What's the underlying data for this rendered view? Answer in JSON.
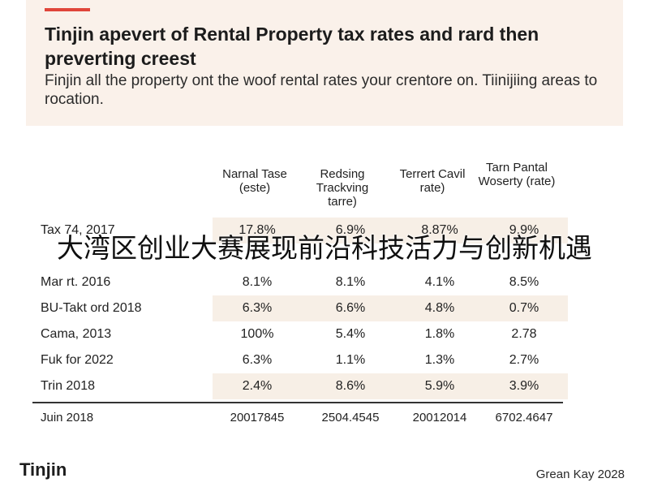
{
  "header": {
    "title": "Tinjin apevert of Rental Property tax rates and rard then preverting creest",
    "subtitle": "Finjin all the property ont the woof rental rates your crentore on. Tiinijiing areas to rocation.",
    "accent_color": "#e0453a",
    "background_color": "#faf1ea"
  },
  "table": {
    "columns": [
      "Narnal Tase (este)",
      "Redsing Trackving tarre)",
      "Terrert Cavil rate)",
      "Tarn Pantal Woserty (rate)"
    ],
    "rows": [
      {
        "label": "Tax 74, 2017",
        "values": [
          "17.8%",
          "6.9%",
          "8.87%",
          "9.9%"
        ]
      },
      {
        "label": "",
        "values": [
          "",
          "",
          "",
          ""
        ]
      },
      {
        "label": "Mar rt. 2016",
        "values": [
          "8.1%",
          "8.1%",
          "4.1%",
          "8.5%"
        ]
      },
      {
        "label": "BU-Takt ord 2018",
        "values": [
          "6.3%",
          "6.6%",
          "4.8%",
          "0.7%"
        ]
      },
      {
        "label": "Cama, 2013",
        "values": [
          "100%",
          "5.4%",
          "1.8%",
          "2.78"
        ]
      },
      {
        "label": "Fuk for 2022",
        "values": [
          "6.3%",
          "1.1%",
          "1.3%",
          "2.7%"
        ]
      },
      {
        "label": "Trin 2018",
        "values": [
          "2.4%",
          "8.6%",
          "5.9%",
          "3.9%"
        ]
      }
    ],
    "total": {
      "label": "Juin 2018",
      "values": [
        "20017845",
        "2504.4545",
        "20012014",
        "6702.4647"
      ]
    }
  },
  "overlay_text": "大湾区创业大赛展现前沿科技活力与创新机遇",
  "footer": {
    "brand": "Tinjin",
    "right_text": "Grean Kay 2028"
  }
}
